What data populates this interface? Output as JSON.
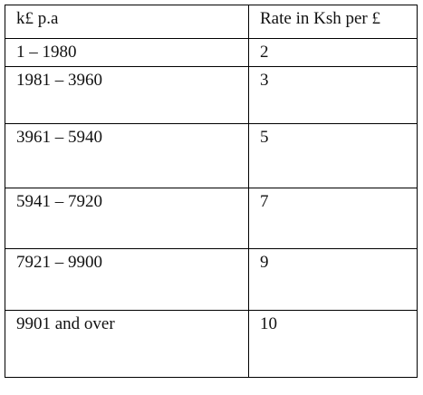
{
  "table": {
    "headers": [
      "k£ p.a",
      "Rate in Ksh per £"
    ],
    "rows": [
      [
        "1 – 1980",
        "2"
      ],
      [
        "1981 – 3960",
        "3"
      ],
      [
        "3961 – 5940",
        "5"
      ],
      [
        "5941 – 7920",
        "7"
      ],
      [
        "7921 – 9900",
        "9"
      ],
      [
        "9901 and over",
        "10"
      ]
    ]
  }
}
